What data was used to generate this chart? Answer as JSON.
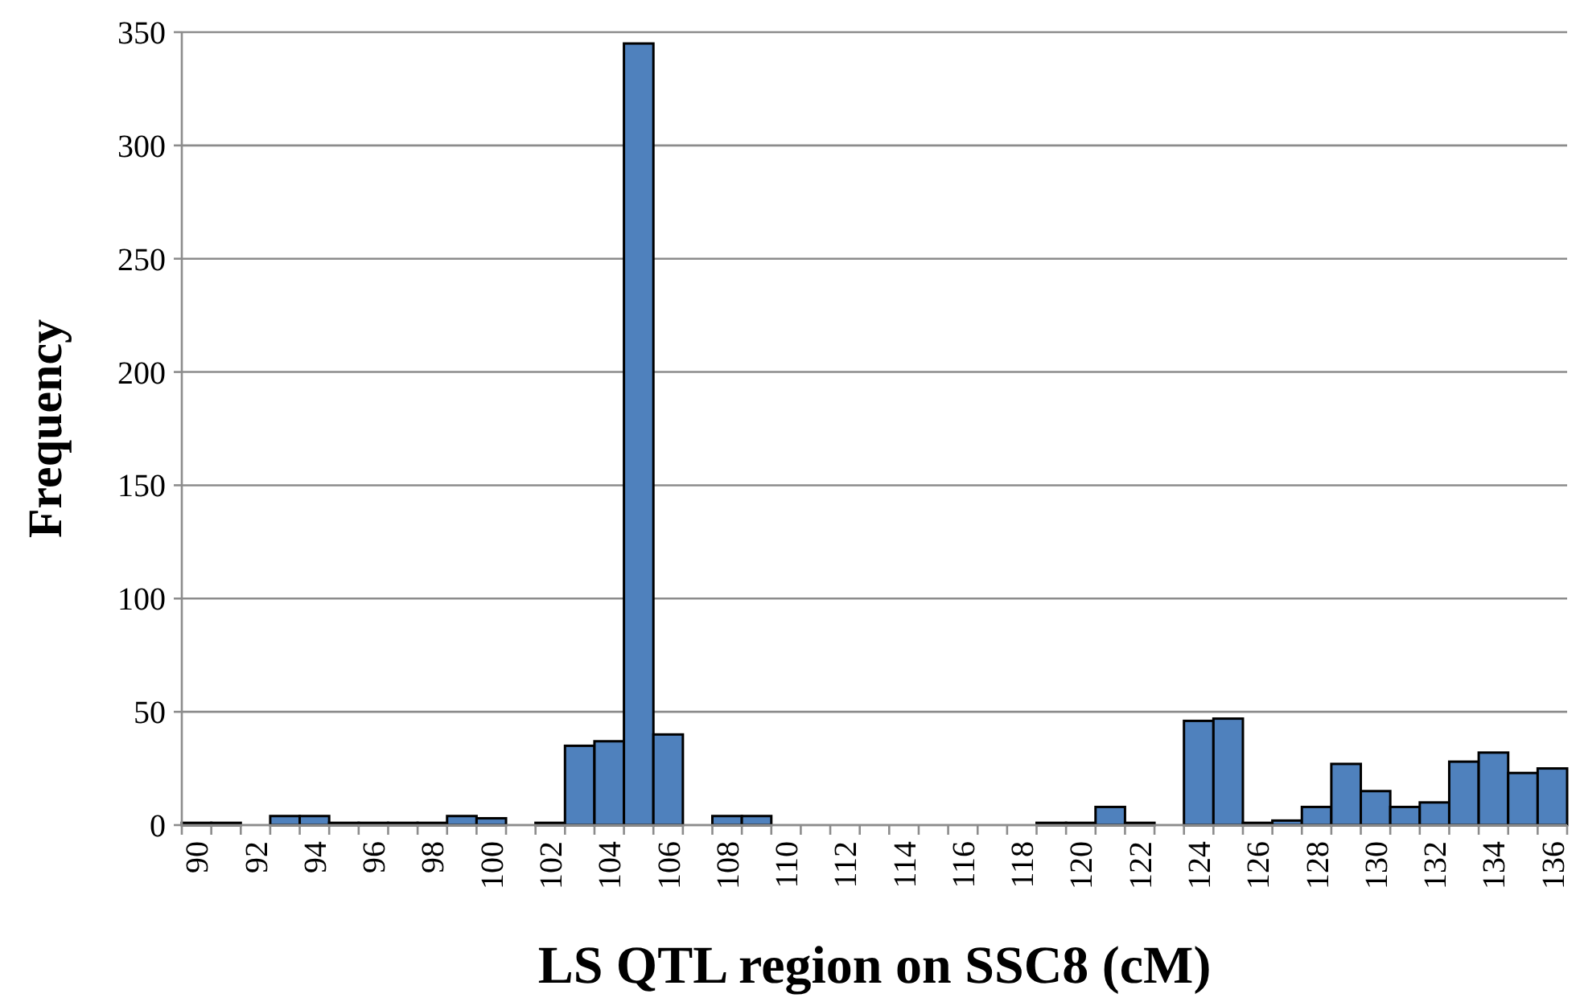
{
  "chart_data": {
    "type": "bar",
    "xlabel": "LS QTL region on SSC8 (cM)",
    "ylabel": "Frequency",
    "categories": [
      "90",
      null,
      "92",
      null,
      "94",
      null,
      "96",
      null,
      "98",
      null,
      "100",
      null,
      "102",
      null,
      "104",
      null,
      "106",
      null,
      "108",
      null,
      "110",
      null,
      "112",
      null,
      "114",
      null,
      "116",
      null,
      "118",
      null,
      "120",
      null,
      "122",
      null,
      "124",
      null,
      "126",
      null,
      "128",
      null,
      "130",
      null,
      "132",
      null,
      "134",
      null,
      "136"
    ],
    "values": [
      1,
      1,
      0,
      4,
      4,
      1,
      1,
      1,
      1,
      4,
      3,
      0,
      1,
      35,
      37,
      345,
      40,
      0,
      4,
      4,
      0,
      0,
      0,
      0,
      0,
      0,
      0,
      0,
      0,
      1,
      1,
      8,
      1,
      0,
      46,
      47,
      1,
      2,
      8,
      27,
      15,
      8,
      10,
      28,
      32,
      23,
      25
    ],
    "color": "#4f81bd",
    "ylim": [
      0,
      350
    ],
    "yticks": [
      0,
      50,
      100,
      150,
      200,
      250,
      300,
      350
    ],
    "grid": "y"
  }
}
